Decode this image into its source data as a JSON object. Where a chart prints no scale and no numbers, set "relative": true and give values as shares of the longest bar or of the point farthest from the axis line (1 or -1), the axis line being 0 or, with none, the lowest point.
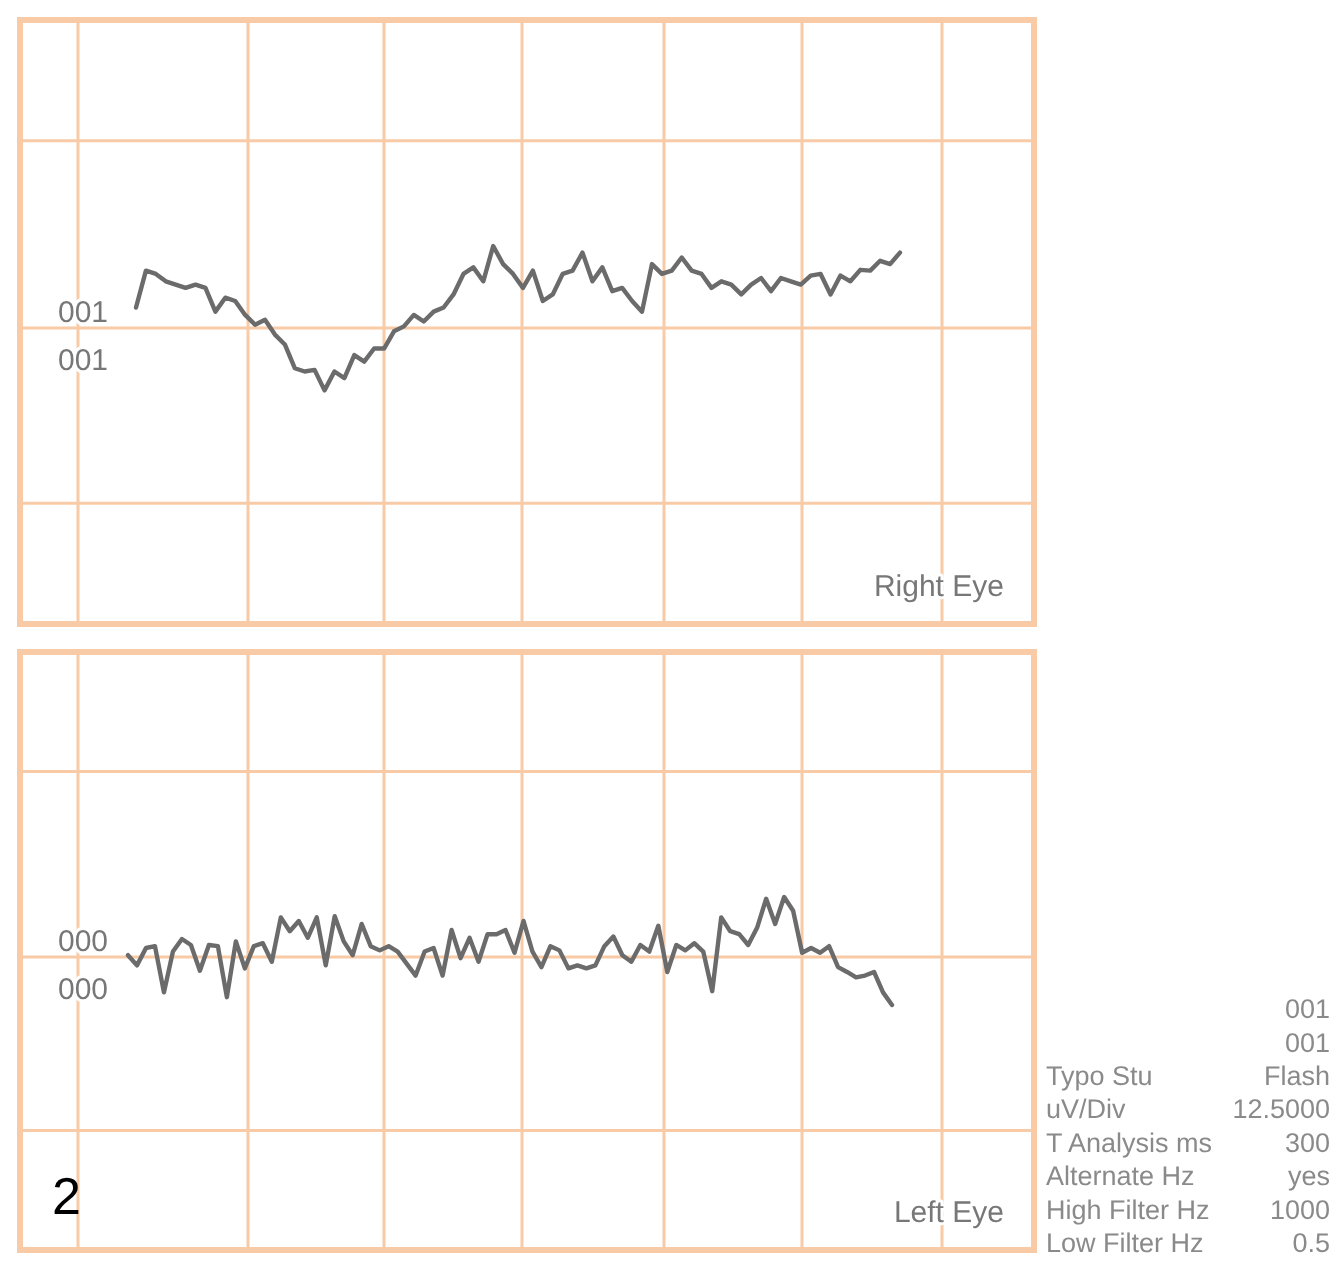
{
  "chart_data": [
    {
      "type": "line",
      "relative": true,
      "grid": true,
      "line_style": "solid",
      "categories": [
        null,
        null,
        null,
        null,
        null,
        null,
        null,
        null,
        null,
        null,
        null,
        null,
        null,
        null,
        null,
        null,
        null,
        null,
        null,
        null,
        null,
        null,
        null,
        null,
        null,
        null,
        null,
        null,
        null,
        null,
        null,
        null,
        null,
        null,
        null,
        null,
        null,
        null,
        null,
        null,
        null,
        null,
        null,
        null,
        null,
        null,
        null,
        null,
        null,
        null,
        null,
        null,
        null,
        null,
        null,
        null,
        null,
        null,
        null,
        null,
        null,
        null,
        null,
        null,
        null,
        null,
        null,
        null,
        null,
        null,
        null,
        null,
        null,
        null,
        null,
        null,
        null,
        null
      ],
      "annotations": [
        "001",
        "001",
        "Right Eye"
      ],
      "series": [
        {
          "color": "#6b6b6b",
          "values": [
            0.25,
            0.7,
            0.66,
            0.57,
            0.53,
            0.49,
            0.53,
            0.49,
            0.2,
            0.37,
            0.33,
            0.16,
            0.04,
            0.1,
            -0.08,
            -0.2,
            -0.49,
            -0.53,
            -0.51,
            -0.76,
            -0.53,
            -0.61,
            -0.33,
            -0.41,
            -0.25,
            -0.25,
            -0.04,
            0.02,
            0.16,
            0.08,
            0.2,
            0.25,
            0.41,
            0.66,
            0.74,
            0.57,
            1,
            0.78,
            0.66,
            0.49,
            0.7,
            0.33,
            0.41,
            0.66,
            0.7,
            0.92,
            0.57,
            0.74,
            0.45,
            0.49,
            0.33,
            0.2,
            0.78,
            0.66,
            0.7,
            0.86,
            0.7,
            0.66,
            0.49,
            0.57,
            0.53,
            0.41,
            0.53,
            0.61,
            0.45,
            0.61,
            0.57,
            0.53,
            0.64,
            0.66,
            0.41,
            0.64,
            0.57,
            0.71,
            0.7,
            0.82,
            0.78,
            0.92
          ]
        }
      ]
    },
    {
      "type": "line",
      "relative": true,
      "grid": true,
      "line_style": "solid",
      "categories": [
        null,
        null,
        null,
        null,
        null,
        null,
        null,
        null,
        null,
        null,
        null,
        null,
        null,
        null,
        null,
        null,
        null,
        null,
        null,
        null,
        null,
        null,
        null,
        null,
        null,
        null,
        null,
        null,
        null,
        null,
        null,
        null,
        null,
        null,
        null,
        null,
        null,
        null,
        null,
        null,
        null,
        null,
        null,
        null,
        null,
        null,
        null,
        null,
        null,
        null,
        null,
        null,
        null,
        null,
        null,
        null,
        null,
        null,
        null,
        null,
        null,
        null,
        null,
        null,
        null,
        null,
        null,
        null,
        null,
        null,
        null,
        null,
        null,
        null,
        null,
        null,
        null,
        null,
        null,
        null,
        null,
        null,
        null,
        null,
        null,
        null
      ],
      "annotations": [
        "000",
        "000",
        "2",
        "Left Eye"
      ],
      "series": [
        {
          "color": "#6b6b6b",
          "values": [
            0.03,
            -0.14,
            0.15,
            0.18,
            -0.59,
            0.09,
            0.3,
            0.2,
            -0.23,
            0.2,
            0.18,
            -0.67,
            0.26,
            -0.19,
            0.18,
            0.23,
            -0.08,
            0.66,
            0.43,
            0.6,
            0.32,
            0.66,
            -0.14,
            0.68,
            0.26,
            0.03,
            0.55,
            0.18,
            0.11,
            0.18,
            0.09,
            -0.11,
            -0.31,
            0.09,
            0.15,
            -0.31,
            0.45,
            -0.02,
            0.32,
            -0.08,
            0.38,
            0.38,
            0.45,
            0.07,
            0.6,
            0.09,
            -0.17,
            0.18,
            0.11,
            -0.19,
            -0.14,
            -0.19,
            -0.14,
            0.18,
            0.34,
            0.03,
            -0.08,
            0.2,
            0.09,
            0.52,
            -0.25,
            0.2,
            0.11,
            0.23,
            0.09,
            -0.57,
            0.66,
            0.43,
            0.38,
            0.2,
            0.49,
            0.97,
            0.55,
            1,
            0.77,
            0.07,
            0.15,
            0.07,
            0.18,
            -0.17,
            -0.25,
            -0.34,
            -0.31,
            -0.25,
            -0.59,
            -0.8
          ]
        }
      ]
    },
    {
      "type": "other",
      "annotations": [
        "001",
        "001",
        "Typo Stu",
        "Flash",
        "uV/Div",
        "12.5000",
        "T Analysis ms",
        "300",
        "Alternate Hz",
        "yes",
        "High Filter Hz",
        "1000",
        "Low Filter Hz",
        "0.5"
      ]
    }
  ]
}
